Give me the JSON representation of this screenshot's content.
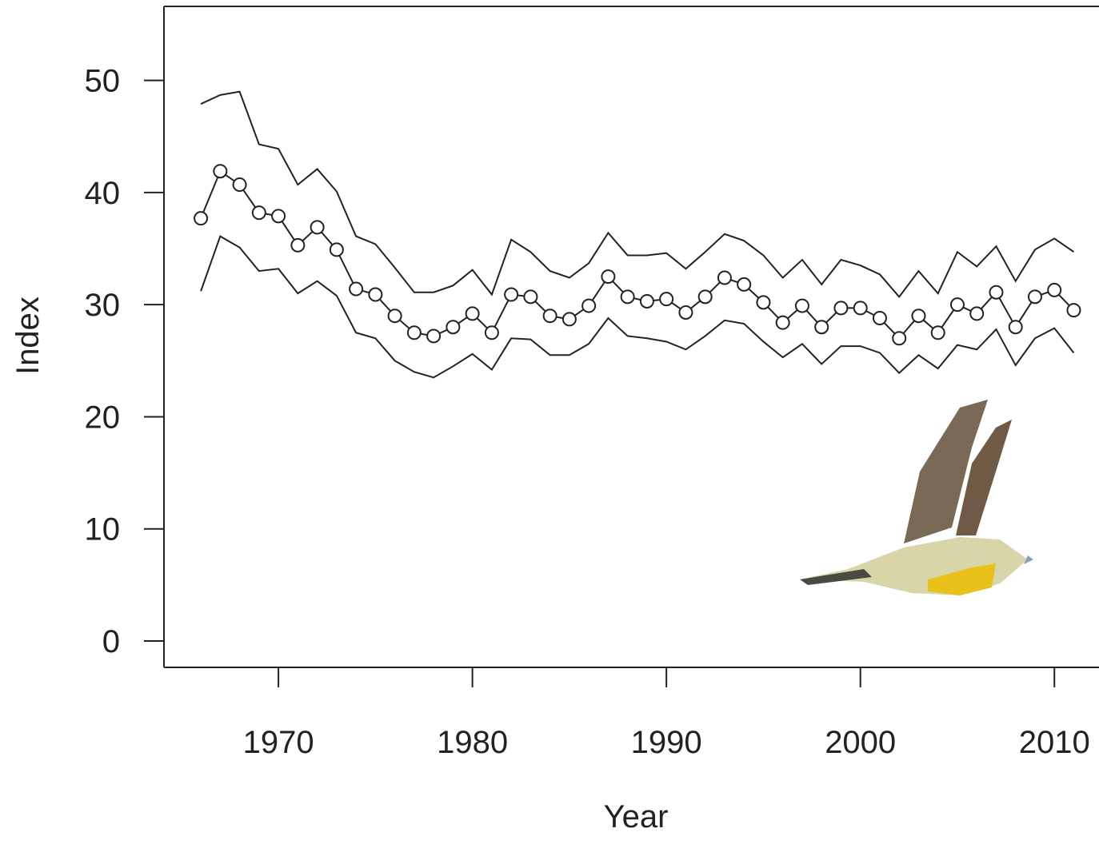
{
  "chart_data": {
    "type": "line",
    "x_label": "Year",
    "y_label": "Index",
    "x": [
      1966,
      1967,
      1968,
      1969,
      1970,
      1971,
      1972,
      1973,
      1974,
      1975,
      1976,
      1977,
      1978,
      1979,
      1980,
      1981,
      1982,
      1983,
      1984,
      1985,
      1986,
      1987,
      1988,
      1989,
      1990,
      1991,
      1992,
      1993,
      1994,
      1995,
      1996,
      1997,
      1998,
      1999,
      2000,
      2001,
      2002,
      2003,
      2004,
      2005,
      2006,
      2007,
      2008,
      2009,
      2010,
      2011
    ],
    "series": [
      {
        "color": "#222222",
        "markers": true,
        "values": [
          37.7,
          41.9,
          40.7,
          38.2,
          37.9,
          35.3,
          36.9,
          34.9,
          31.4,
          30.9,
          29.0,
          27.5,
          27.2,
          28.0,
          29.2,
          27.5,
          30.9,
          30.7,
          29.0,
          28.7,
          29.9,
          32.5,
          30.7,
          30.3,
          30.5,
          29.3,
          30.7,
          32.4,
          31.8,
          30.2,
          28.4,
          29.9,
          28.0,
          29.7,
          29.7,
          28.8,
          27.0,
          29.0,
          27.5,
          30.0,
          29.2,
          31.1,
          28.0,
          30.7,
          31.3,
          29.5
        ]
      },
      {
        "color": "#222222",
        "markers": false,
        "values": [
          47.9,
          48.7,
          49.0,
          44.3,
          43.9,
          40.7,
          42.1,
          40.1,
          36.1,
          35.4,
          33.3,
          31.1,
          31.1,
          31.7,
          33.1,
          30.9,
          35.8,
          34.7,
          33.0,
          32.4,
          33.7,
          36.4,
          34.4,
          34.4,
          34.6,
          33.2,
          34.7,
          36.3,
          35.7,
          34.4,
          32.4,
          34.0,
          31.8,
          34.0,
          33.5,
          32.7,
          30.7,
          33.0,
          31.0,
          34.7,
          33.4,
          35.2,
          32.1,
          34.9,
          35.9,
          34.7
        ]
      },
      {
        "color": "#222222",
        "markers": false,
        "values": [
          31.2,
          36.1,
          35.1,
          33.0,
          33.2,
          31.0,
          32.1,
          30.8,
          27.5,
          27.0,
          25.0,
          24.0,
          23.5,
          24.5,
          25.6,
          24.2,
          27.0,
          26.9,
          25.5,
          25.5,
          26.5,
          28.8,
          27.2,
          27.0,
          26.7,
          26.0,
          27.2,
          28.6,
          28.3,
          26.7,
          25.3,
          26.5,
          24.7,
          26.3,
          26.3,
          25.7,
          23.9,
          25.5,
          24.3,
          26.4,
          26.0,
          27.8,
          24.6,
          27.0,
          27.9,
          25.7
        ]
      }
    ],
    "xlim": [
      1964.1,
      2012.3
    ],
    "ylim": [
      -2.35,
      56.6
    ],
    "xticks": [
      1970,
      1980,
      1990,
      2000,
      2010
    ],
    "yticks": [
      0,
      10,
      20,
      30,
      40,
      50
    ]
  }
}
